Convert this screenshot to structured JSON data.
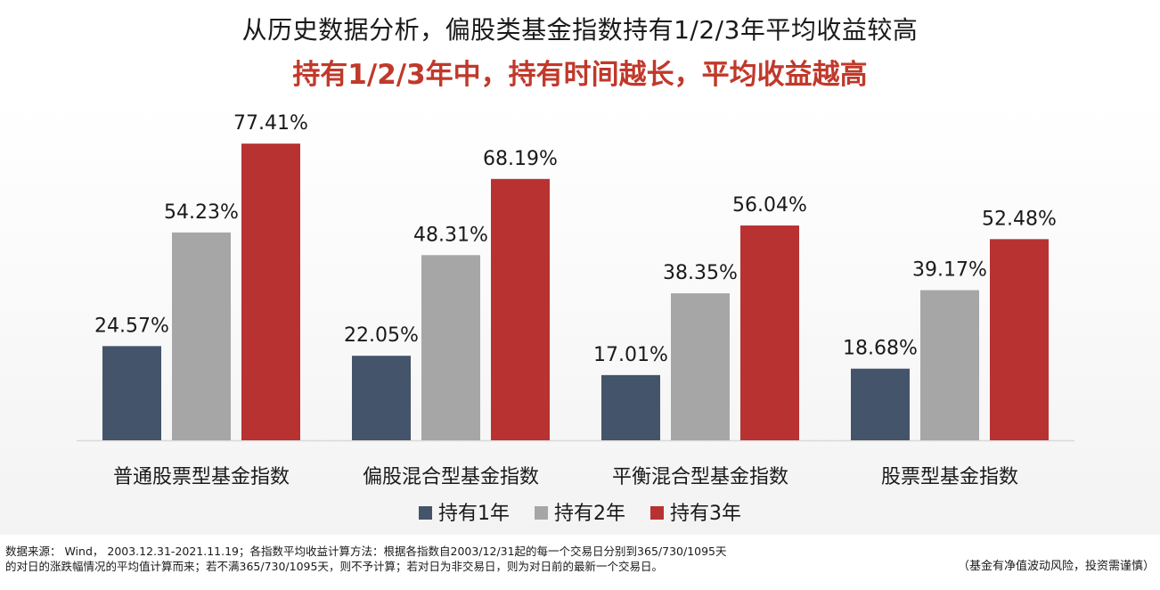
{
  "header": {
    "title": "从历史数据分析，偏股类基金指数持有1/2/3年平均收益较高",
    "subtitle": "持有1/2/3年中，持有时间越长，平均收益越高"
  },
  "chart_data": {
    "type": "bar",
    "categories": [
      "普通股票型基金指数",
      "偏股混合型基金指数",
      "平衡混合型基金指数",
      "股票型基金指数"
    ],
    "series": [
      {
        "name": "持有1年",
        "color": "#44546a",
        "values": [
          24.57,
          22.05,
          17.01,
          18.68
        ],
        "labels": [
          "24.57%",
          "22.05%",
          "17.01%",
          "18.68%"
        ]
      },
      {
        "name": "持有2年",
        "color": "#a6a6a6",
        "values": [
          54.23,
          48.31,
          38.35,
          39.17
        ],
        "labels": [
          "54.23%",
          "48.31%",
          "38.35%",
          "39.17%"
        ]
      },
      {
        "name": "持有3年",
        "color": "#b83232",
        "values": [
          77.41,
          68.19,
          56.04,
          52.48
        ],
        "labels": [
          "77.41%",
          "68.19%",
          "56.04%",
          "52.48%"
        ]
      }
    ],
    "ylim": [
      0,
      80
    ],
    "grid": false,
    "legend_position": "bottom-center"
  },
  "footnote": {
    "line1": "数据来源： Wind， 2003.12.31-2021.11.19；各指数平均收益计算方法：根据各指数自2003/12/31起的每一个交易日分别到365/730/1095天",
    "line2": "的对日的涨跌幅情况的平均值计算而来；若不满365/730/1095天，则不予计算；若对日为非交易日，则为对日前的最新一个交易日。",
    "disclaimer": "（基金有净值波动风险，投资需谨慎）"
  }
}
